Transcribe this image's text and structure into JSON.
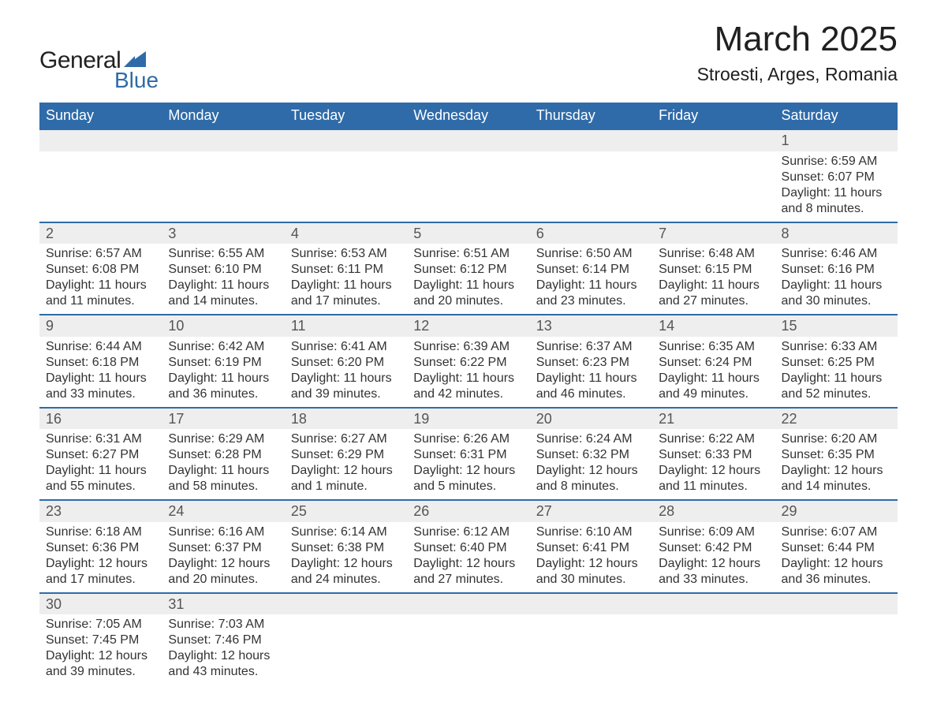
{
  "logo": {
    "word1": "General",
    "word2": "Blue"
  },
  "title": "March 2025",
  "location": "Stroesti, Arges, Romania",
  "colors": {
    "header_bg": "#2f6ba8",
    "header_text": "#ffffff",
    "row_sep": "#2f6ba8",
    "daynum_bg": "#eeeeee",
    "text": "#333333",
    "logo_blue": "#2f6ba8"
  },
  "weekdays": [
    "Sunday",
    "Monday",
    "Tuesday",
    "Wednesday",
    "Thursday",
    "Friday",
    "Saturday"
  ],
  "weeks": [
    {
      "daynums": [
        "",
        "",
        "",
        "",
        "",
        "",
        "1"
      ],
      "details": [
        "",
        "",
        "",
        "",
        "",
        "",
        "Sunrise: 6:59 AM\nSunset: 6:07 PM\nDaylight: 11 hours and 8 minutes."
      ]
    },
    {
      "daynums": [
        "2",
        "3",
        "4",
        "5",
        "6",
        "7",
        "8"
      ],
      "details": [
        "Sunrise: 6:57 AM\nSunset: 6:08 PM\nDaylight: 11 hours and 11 minutes.",
        "Sunrise: 6:55 AM\nSunset: 6:10 PM\nDaylight: 11 hours and 14 minutes.",
        "Sunrise: 6:53 AM\nSunset: 6:11 PM\nDaylight: 11 hours and 17 minutes.",
        "Sunrise: 6:51 AM\nSunset: 6:12 PM\nDaylight: 11 hours and 20 minutes.",
        "Sunrise: 6:50 AM\nSunset: 6:14 PM\nDaylight: 11 hours and 23 minutes.",
        "Sunrise: 6:48 AM\nSunset: 6:15 PM\nDaylight: 11 hours and 27 minutes.",
        "Sunrise: 6:46 AM\nSunset: 6:16 PM\nDaylight: 11 hours and 30 minutes."
      ]
    },
    {
      "daynums": [
        "9",
        "10",
        "11",
        "12",
        "13",
        "14",
        "15"
      ],
      "details": [
        "Sunrise: 6:44 AM\nSunset: 6:18 PM\nDaylight: 11 hours and 33 minutes.",
        "Sunrise: 6:42 AM\nSunset: 6:19 PM\nDaylight: 11 hours and 36 minutes.",
        "Sunrise: 6:41 AM\nSunset: 6:20 PM\nDaylight: 11 hours and 39 minutes.",
        "Sunrise: 6:39 AM\nSunset: 6:22 PM\nDaylight: 11 hours and 42 minutes.",
        "Sunrise: 6:37 AM\nSunset: 6:23 PM\nDaylight: 11 hours and 46 minutes.",
        "Sunrise: 6:35 AM\nSunset: 6:24 PM\nDaylight: 11 hours and 49 minutes.",
        "Sunrise: 6:33 AM\nSunset: 6:25 PM\nDaylight: 11 hours and 52 minutes."
      ]
    },
    {
      "daynums": [
        "16",
        "17",
        "18",
        "19",
        "20",
        "21",
        "22"
      ],
      "details": [
        "Sunrise: 6:31 AM\nSunset: 6:27 PM\nDaylight: 11 hours and 55 minutes.",
        "Sunrise: 6:29 AM\nSunset: 6:28 PM\nDaylight: 11 hours and 58 minutes.",
        "Sunrise: 6:27 AM\nSunset: 6:29 PM\nDaylight: 12 hours and 1 minute.",
        "Sunrise: 6:26 AM\nSunset: 6:31 PM\nDaylight: 12 hours and 5 minutes.",
        "Sunrise: 6:24 AM\nSunset: 6:32 PM\nDaylight: 12 hours and 8 minutes.",
        "Sunrise: 6:22 AM\nSunset: 6:33 PM\nDaylight: 12 hours and 11 minutes.",
        "Sunrise: 6:20 AM\nSunset: 6:35 PM\nDaylight: 12 hours and 14 minutes."
      ]
    },
    {
      "daynums": [
        "23",
        "24",
        "25",
        "26",
        "27",
        "28",
        "29"
      ],
      "details": [
        "Sunrise: 6:18 AM\nSunset: 6:36 PM\nDaylight: 12 hours and 17 minutes.",
        "Sunrise: 6:16 AM\nSunset: 6:37 PM\nDaylight: 12 hours and 20 minutes.",
        "Sunrise: 6:14 AM\nSunset: 6:38 PM\nDaylight: 12 hours and 24 minutes.",
        "Sunrise: 6:12 AM\nSunset: 6:40 PM\nDaylight: 12 hours and 27 minutes.",
        "Sunrise: 6:10 AM\nSunset: 6:41 PM\nDaylight: 12 hours and 30 minutes.",
        "Sunrise: 6:09 AM\nSunset: 6:42 PM\nDaylight: 12 hours and 33 minutes.",
        "Sunrise: 6:07 AM\nSunset: 6:44 PM\nDaylight: 12 hours and 36 minutes."
      ]
    },
    {
      "daynums": [
        "30",
        "31",
        "",
        "",
        "",
        "",
        ""
      ],
      "details": [
        "Sunrise: 7:05 AM\nSunset: 7:45 PM\nDaylight: 12 hours and 39 minutes.",
        "Sunrise: 7:03 AM\nSunset: 7:46 PM\nDaylight: 12 hours and 43 minutes.",
        "",
        "",
        "",
        "",
        ""
      ]
    }
  ]
}
